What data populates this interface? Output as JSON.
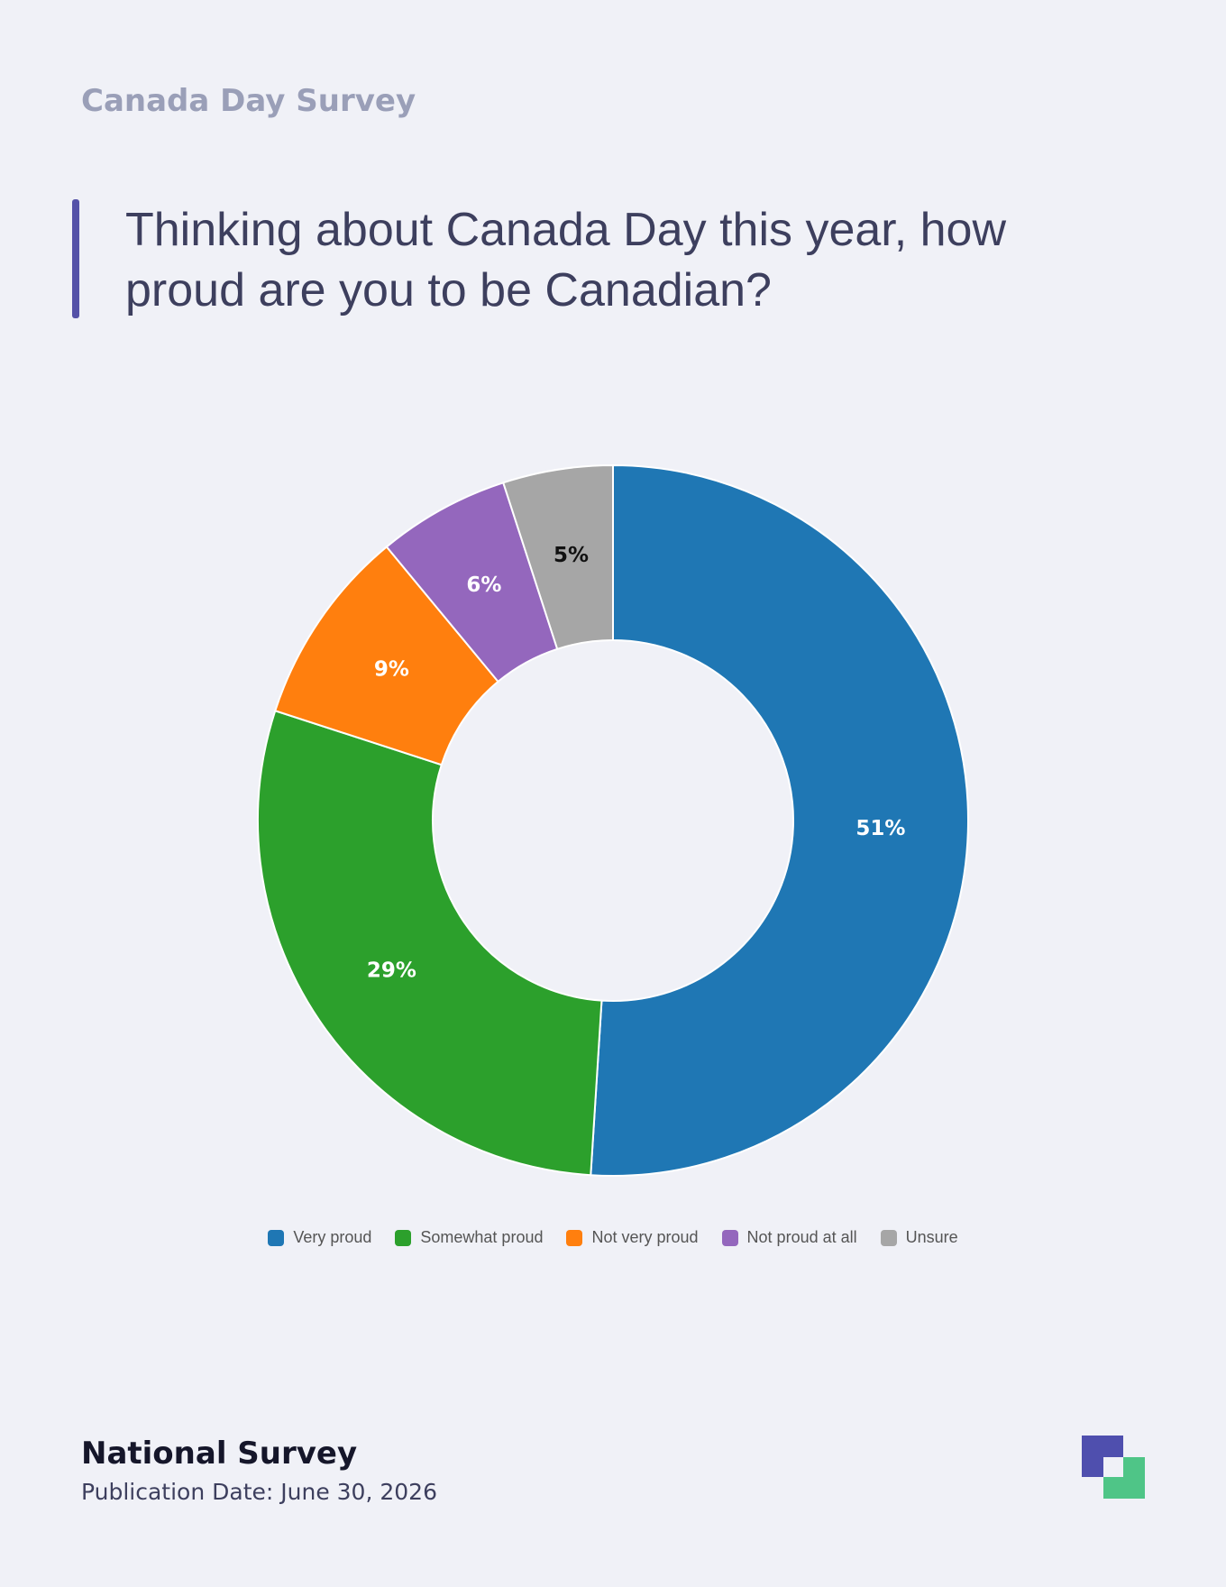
{
  "header": {
    "title": "Canada Day Survey"
  },
  "chart_data": {
    "type": "donut",
    "title": "Thinking about Canada Day this year, how proud are you to be Canadian?",
    "categories": [
      "Very proud",
      "Somewhat proud",
      "Not very proud",
      "Not proud at all",
      "Unsure"
    ],
    "values": [
      51,
      29,
      9,
      6,
      5
    ],
    "value_labels": [
      "51%",
      "29%",
      "9%",
      "6%",
      "5%"
    ],
    "colors": [
      "#1f77b4",
      "#2ca02c",
      "#ff7f0e",
      "#9467bd",
      "#a6a6a6"
    ]
  },
  "footer": {
    "title": "National Survey",
    "subtitle": "Publication Date: June 30, 2026"
  }
}
